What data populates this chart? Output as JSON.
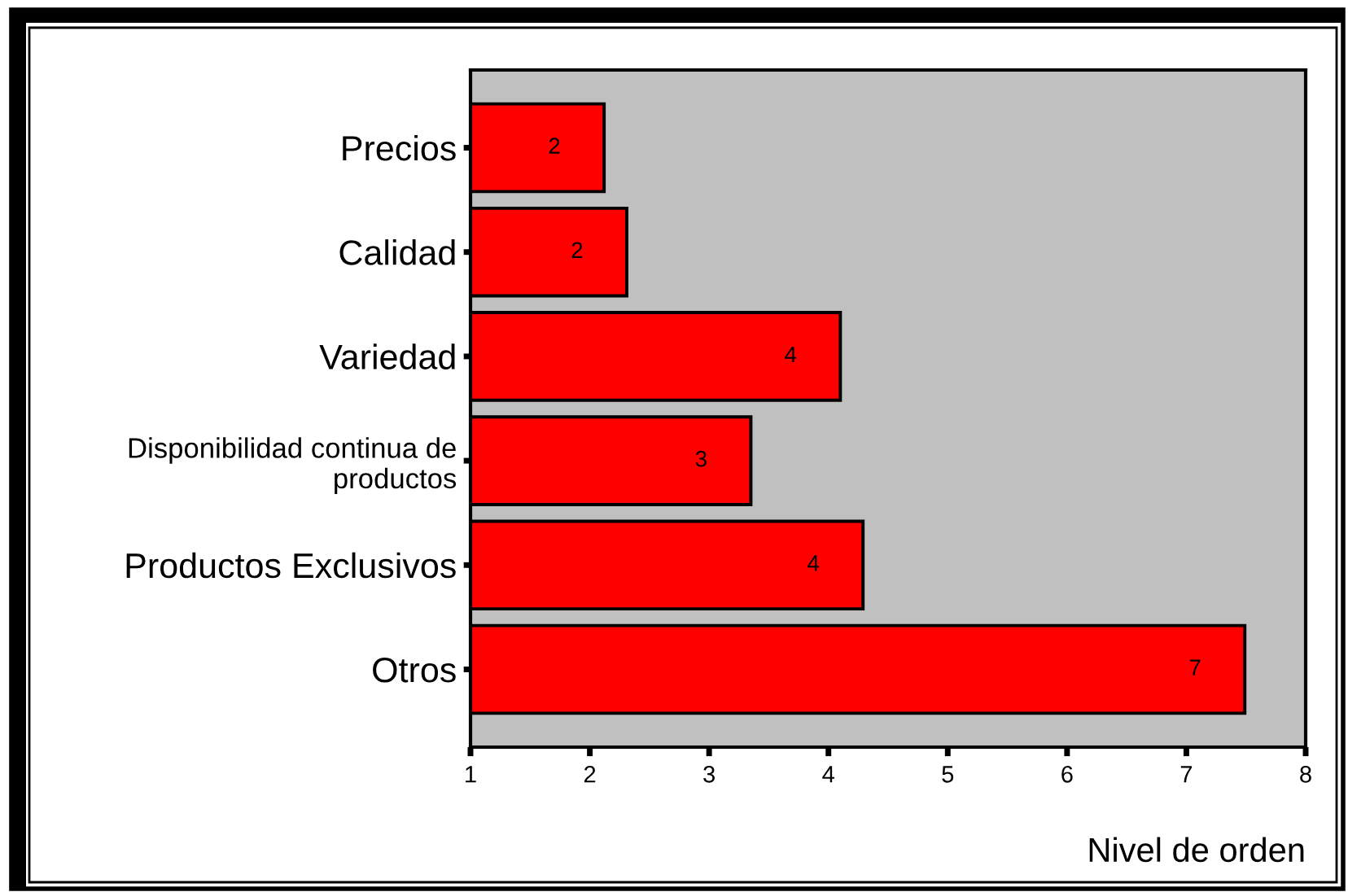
{
  "chart_data": {
    "type": "bar",
    "orientation": "horizontal",
    "categories": [
      "Precios",
      "Calidad",
      "Variedad",
      "Disponibilidad continua de\nproductos",
      "Productos Exclusivos",
      "Otros"
    ],
    "values": [
      2.12,
      2.31,
      4.1,
      3.35,
      4.29,
      7.49
    ],
    "value_labels": [
      "2",
      "2",
      "4",
      "3",
      "4",
      "7"
    ],
    "color": "#ff0000",
    "xlim": [
      1,
      8
    ],
    "xticks": [
      1,
      2,
      3,
      4,
      5,
      6,
      7,
      8
    ],
    "xlabel": "Nivel de orden",
    "grid": false,
    "legend": false
  }
}
